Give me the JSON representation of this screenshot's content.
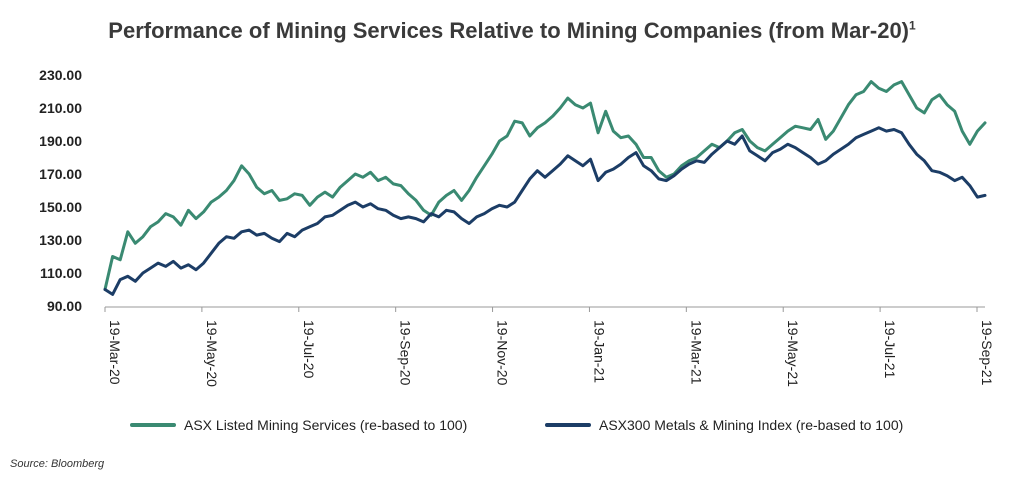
{
  "chart_data": {
    "type": "line",
    "title": "Performance of Mining Services Relative to Mining Companies (from Mar-20)",
    "title_footnote": "1",
    "xlabel": "",
    "ylabel": "",
    "ylim": [
      90,
      230
    ],
    "y_ticks": [
      "230.00",
      "210.00",
      "190.00",
      "170.00",
      "150.00",
      "130.00",
      "110.00",
      "90.00"
    ],
    "x_ticks": [
      "19-Mar-20",
      "19-May-20",
      "19-Jul-20",
      "19-Sep-20",
      "19-Nov-20",
      "19-Jan-21",
      "19-Mar-21",
      "19-May-21",
      "19-Jul-21",
      "19-Sep-21"
    ],
    "grid": false,
    "legend_position": "bottom",
    "series": [
      {
        "name": "ASX Listed Mining Services (re-based to 100)",
        "color": "#3a8a72",
        "values": [
          100,
          120,
          118,
          135,
          128,
          132,
          138,
          141,
          146,
          144,
          139,
          148,
          143,
          147,
          153,
          156,
          160,
          166,
          175,
          170,
          162,
          158,
          160,
          154,
          155,
          158,
          157,
          151,
          156,
          159,
          156,
          162,
          166,
          170,
          168,
          171,
          166,
          168,
          164,
          163,
          158,
          154,
          148,
          145,
          153,
          157,
          160,
          154,
          160,
          168,
          175,
          182,
          190,
          193,
          202,
          201,
          193,
          198,
          201,
          205,
          210,
          216,
          212,
          210,
          213,
          195,
          208,
          196,
          192,
          193,
          188,
          180,
          180,
          172,
          168,
          170,
          175,
          178,
          180,
          184,
          188,
          186,
          190,
          195,
          197,
          190,
          186,
          184,
          188,
          192,
          196,
          199,
          198,
          197,
          203,
          191,
          196,
          204,
          212,
          218,
          220,
          226,
          222,
          220,
          224,
          226,
          218,
          210,
          207,
          215,
          218,
          212,
          208,
          196,
          188,
          196,
          201
        ]
      },
      {
        "name": "ASX300 Metals & Mining Index (re-based to 100)",
        "color": "#1c3d66",
        "values": [
          100,
          97,
          106,
          108,
          105,
          110,
          113,
          116,
          114,
          117,
          113,
          115,
          112,
          116,
          122,
          128,
          132,
          131,
          135,
          136,
          133,
          134,
          131,
          129,
          134,
          132,
          136,
          138,
          140,
          144,
          145,
          148,
          151,
          153,
          150,
          152,
          149,
          148,
          145,
          143,
          144,
          143,
          141,
          146,
          144,
          148,
          147,
          143,
          140,
          144,
          146,
          149,
          151,
          150,
          153,
          160,
          167,
          172,
          168,
          172,
          176,
          181,
          178,
          175,
          179,
          166,
          171,
          173,
          176,
          180,
          183,
          175,
          172,
          167,
          166,
          169,
          173,
          176,
          178,
          177,
          182,
          186,
          190,
          188,
          193,
          184,
          181,
          178,
          183,
          185,
          188,
          186,
          183,
          180,
          176,
          178,
          182,
          185,
          188,
          192,
          194,
          196,
          198,
          196,
          197,
          195,
          188,
          182,
          178,
          172,
          171,
          169,
          166,
          168,
          163,
          156,
          157
        ]
      }
    ]
  },
  "source": "Source: Bloomberg"
}
